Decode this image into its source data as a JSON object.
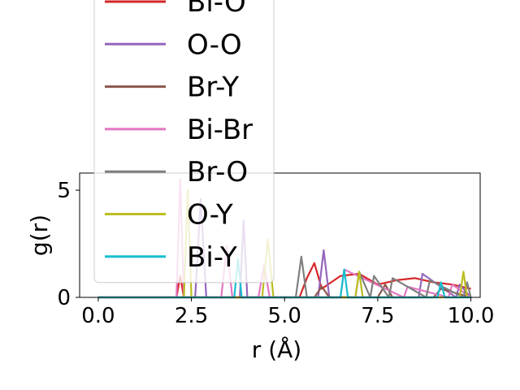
{
  "chart_data": {
    "type": "line",
    "xlabel": "r (Å)",
    "ylabel": "g(r)",
    "xlim": [
      -0.5,
      10.25
    ],
    "ylim": [
      0,
      5.8
    ],
    "xticks": [
      0.0,
      2.5,
      5.0,
      7.5,
      10.0
    ],
    "xtick_labels": [
      "0.0",
      "2.5",
      "5.0",
      "7.5",
      "10.0"
    ],
    "yticks": [
      0,
      5
    ],
    "ytick_labels": [
      "0",
      "5"
    ],
    "grid": false,
    "legend": {
      "placement": "upper-left (overflows top of axes)"
    },
    "series": [
      {
        "name": "Bi-O",
        "color": "#d62728",
        "x": [
          0,
          2.1,
          2.2,
          2.3,
          5.4,
          5.6,
          5.8,
          6.0,
          6.5,
          7.0,
          7.5,
          8.0,
          8.5,
          9.0,
          9.5,
          10.0
        ],
        "y": [
          0,
          0,
          1.0,
          0,
          0,
          0.9,
          1.6,
          0.4,
          1.0,
          1.1,
          0.6,
          0.8,
          0.9,
          0.7,
          0.6,
          0.4
        ]
      },
      {
        "name": "O-O",
        "color": "#9467bd",
        "x": [
          0,
          2.6,
          2.75,
          2.9,
          3.8,
          3.9,
          4.0,
          5.9,
          6.05,
          6.2,
          8.6,
          8.7,
          9.6,
          9.7,
          10.0
        ],
        "y": [
          0,
          0,
          4.6,
          0,
          0,
          3.6,
          0,
          0,
          2.2,
          0,
          0,
          1.1,
          0,
          0.6,
          0
        ]
      },
      {
        "name": "Br-Y",
        "color": "#8c564b",
        "x": [
          0,
          5.8,
          6.0,
          6.2,
          7.5,
          7.7,
          7.9,
          9.0,
          9.2,
          10.0
        ],
        "y": [
          0,
          0,
          0.5,
          0,
          0,
          0.6,
          0,
          0,
          0.4,
          0
        ]
      },
      {
        "name": "Bi-Br",
        "color": "#e377c2",
        "x": [
          0,
          2.1,
          2.2,
          2.3,
          3.3,
          3.45,
          3.6,
          4.3,
          4.45,
          4.6,
          6.5,
          6.6,
          8.2,
          8.3,
          9.4,
          9.5,
          10.0
        ],
        "y": [
          0,
          0,
          5.5,
          0,
          0,
          2.4,
          0,
          0,
          1.5,
          0,
          0,
          1.3,
          0,
          0.5,
          0,
          0.6,
          0
        ]
      },
      {
        "name": "Br-O",
        "color": "#7f7f7f",
        "x": [
          0,
          5.3,
          5.45,
          5.6,
          6.9,
          7.0,
          7.3,
          7.4,
          7.8,
          7.9,
          8.8,
          8.9,
          9.8,
          9.9,
          10.0
        ],
        "y": [
          0,
          0,
          1.9,
          0,
          0,
          1.2,
          0,
          1.0,
          0,
          0.9,
          0,
          0.8,
          0,
          0.7,
          0
        ]
      },
      {
        "name": "O-Y",
        "color": "#bcbd22",
        "x": [
          0,
          2.3,
          2.4,
          2.5,
          4.4,
          4.55,
          4.7,
          6.9,
          7.0,
          7.1,
          9.7,
          9.8,
          9.9,
          10.0
        ],
        "y": [
          0,
          0,
          5.0,
          0,
          0,
          2.7,
          0,
          0,
          1.2,
          0,
          0,
          1.2,
          0,
          0
        ]
      },
      {
        "name": "Bi-Y",
        "color": "#17becf",
        "x": [
          0,
          3.65,
          3.75,
          3.85,
          6.5,
          6.6,
          6.7,
          9.1,
          9.2,
          9.3,
          10.0
        ],
        "y": [
          0,
          0,
          1.8,
          0,
          0,
          1.3,
          0,
          0,
          0.7,
          0,
          0
        ]
      }
    ],
    "legend_entries": [
      {
        "label": "Bi-O",
        "color": "#d62728"
      },
      {
        "label": "O-O",
        "color": "#9467bd"
      },
      {
        "label": "Br-Y",
        "color": "#8c564b"
      },
      {
        "label": "Bi-Br",
        "color": "#e377c2"
      },
      {
        "label": "Br-O",
        "color": "#7f7f7f"
      },
      {
        "label": "O-Y",
        "color": "#bcbd22"
      },
      {
        "label": "Bi-Y",
        "color": "#17becf"
      }
    ]
  }
}
